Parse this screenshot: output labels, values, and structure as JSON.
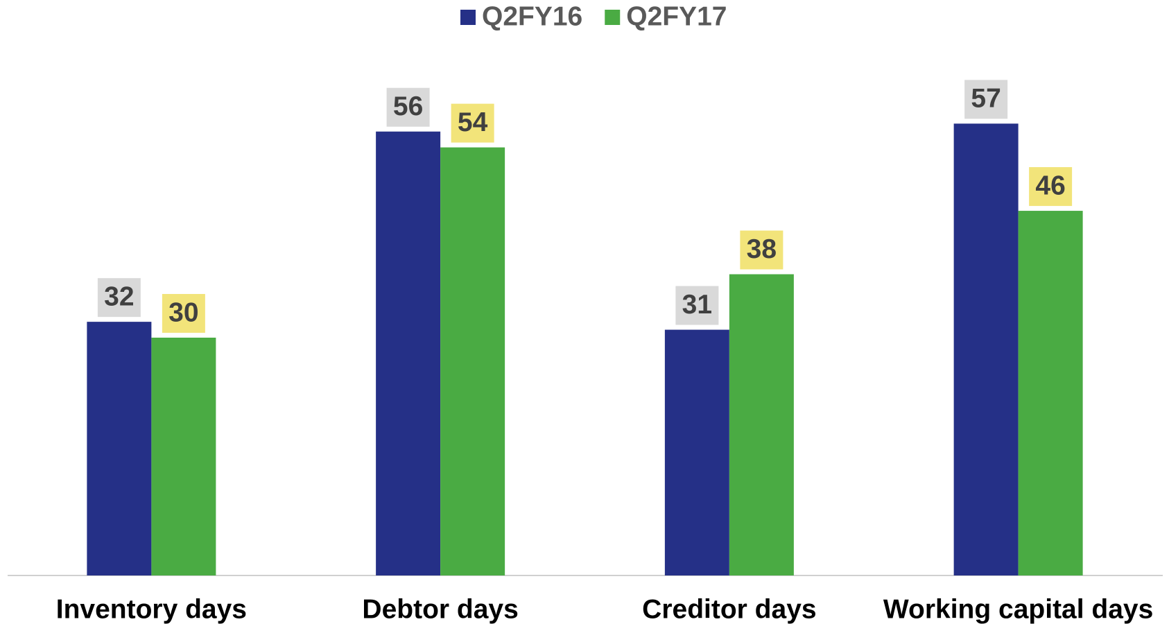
{
  "chart_data": {
    "type": "bar",
    "categories": [
      "Inventory days",
      "Debtor days",
      "Creditor days",
      "Working capital days"
    ],
    "series": [
      {
        "name": "Q2FY16",
        "color": "#253087",
        "label_bg": "#d9d9d9",
        "values": [
          32,
          56,
          31,
          57
        ]
      },
      {
        "name": "Q2FY17",
        "color": "#4aab43",
        "label_bg": "#f2e47a",
        "values": [
          30,
          54,
          38,
          46
        ]
      }
    ],
    "ylim": [
      0,
      60
    ],
    "legend": "top"
  }
}
